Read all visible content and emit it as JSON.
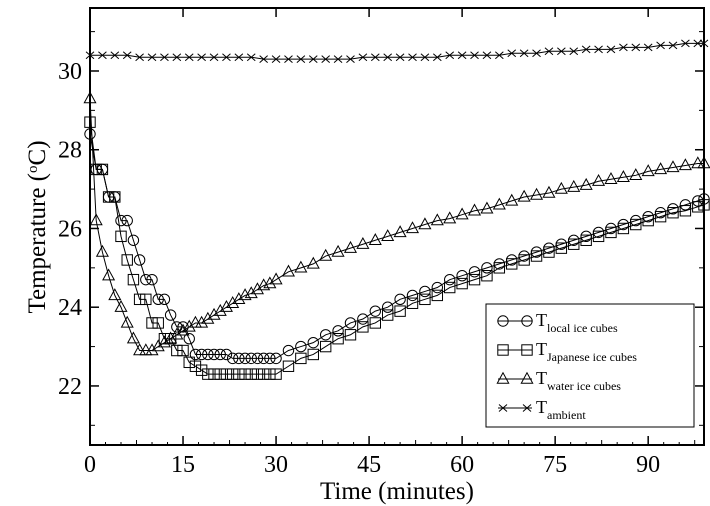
{
  "chart_data": {
    "type": "line",
    "xlabel": "Time (minutes)",
    "ylabel_parts": {
      "main": "Temperature (",
      "sup": "o",
      "rest": "C)"
    },
    "xlim": [
      0,
      99
    ],
    "ylim": [
      20.5,
      31.6
    ],
    "x_ticks": [
      0,
      15,
      30,
      45,
      60,
      75,
      90
    ],
    "y_ticks": [
      22,
      24,
      26,
      28,
      30
    ],
    "legend_position": "bottom-right",
    "series": [
      {
        "name_main": "T",
        "name_sub": "local ice cubes",
        "marker": "circle",
        "x": [
          0,
          1,
          2,
          3,
          4,
          5,
          6,
          7,
          8,
          9,
          10,
          11,
          12,
          13,
          14,
          15,
          16,
          17,
          18,
          19,
          20,
          21,
          22,
          23,
          24,
          25,
          26,
          27,
          28,
          29,
          30,
          32,
          34,
          36,
          38,
          40,
          42,
          44,
          46,
          48,
          50,
          52,
          54,
          56,
          58,
          60,
          62,
          64,
          66,
          68,
          70,
          72,
          74,
          76,
          78,
          80,
          82,
          84,
          86,
          88,
          90,
          92,
          94,
          96,
          98,
          99
        ],
        "y": [
          28.4,
          27.5,
          27.5,
          26.8,
          26.8,
          26.2,
          26.2,
          25.7,
          25.2,
          24.7,
          24.7,
          24.2,
          24.2,
          23.8,
          23.5,
          23.5,
          23.2,
          22.8,
          22.8,
          22.8,
          22.8,
          22.8,
          22.8,
          22.7,
          22.7,
          22.7,
          22.7,
          22.7,
          22.7,
          22.7,
          22.7,
          22.9,
          23.0,
          23.1,
          23.3,
          23.4,
          23.6,
          23.7,
          23.9,
          24.0,
          24.2,
          24.3,
          24.4,
          24.5,
          24.7,
          24.8,
          24.9,
          25.0,
          25.1,
          25.2,
          25.3,
          25.4,
          25.5,
          25.6,
          25.7,
          25.8,
          25.9,
          26.0,
          26.1,
          26.2,
          26.3,
          26.4,
          26.5,
          26.6,
          26.7,
          26.75
        ]
      },
      {
        "name_main": "T",
        "name_sub": "Japanese ice cubes",
        "marker": "square",
        "x": [
          0,
          1,
          2,
          3,
          4,
          5,
          6,
          7,
          8,
          9,
          10,
          11,
          12,
          13,
          14,
          15,
          16,
          17,
          18,
          19,
          20,
          21,
          22,
          23,
          24,
          25,
          26,
          27,
          28,
          29,
          30,
          32,
          34,
          36,
          38,
          40,
          42,
          44,
          46,
          48,
          50,
          52,
          54,
          56,
          58,
          60,
          62,
          64,
          66,
          68,
          70,
          72,
          74,
          76,
          78,
          80,
          82,
          84,
          86,
          88,
          90,
          92,
          94,
          96,
          98,
          99
        ],
        "y": [
          28.7,
          27.5,
          27.5,
          26.8,
          26.8,
          25.8,
          25.2,
          24.7,
          24.2,
          24.2,
          23.6,
          23.6,
          23.2,
          23.2,
          22.9,
          22.9,
          22.6,
          22.5,
          22.4,
          22.3,
          22.3,
          22.3,
          22.3,
          22.3,
          22.3,
          22.3,
          22.3,
          22.3,
          22.3,
          22.3,
          22.3,
          22.5,
          22.7,
          22.8,
          23.0,
          23.2,
          23.3,
          23.5,
          23.6,
          23.8,
          23.9,
          24.1,
          24.2,
          24.3,
          24.5,
          24.6,
          24.7,
          24.8,
          25.0,
          25.1,
          25.2,
          25.3,
          25.4,
          25.5,
          25.6,
          25.7,
          25.8,
          25.9,
          26.0,
          26.1,
          26.2,
          26.3,
          26.4,
          26.45,
          26.55,
          26.6
        ]
      },
      {
        "name_main": "T",
        "name_sub": "water ice cubes",
        "marker": "triangle",
        "x": [
          0,
          1,
          2,
          3,
          4,
          5,
          6,
          7,
          8,
          9,
          10,
          11,
          12,
          13,
          14,
          15,
          16,
          17,
          18,
          19,
          20,
          21,
          22,
          23,
          24,
          25,
          26,
          27,
          28,
          29,
          30,
          32,
          34,
          36,
          38,
          40,
          42,
          44,
          46,
          48,
          50,
          52,
          54,
          56,
          58,
          60,
          62,
          64,
          66,
          68,
          70,
          72,
          74,
          76,
          78,
          80,
          82,
          84,
          86,
          88,
          90,
          92,
          94,
          96,
          98,
          99
        ],
        "y": [
          29.3,
          26.2,
          25.4,
          24.8,
          24.3,
          24.0,
          23.6,
          23.2,
          22.9,
          22.9,
          22.9,
          23.0,
          23.1,
          23.2,
          23.3,
          23.4,
          23.5,
          23.6,
          23.6,
          23.7,
          23.8,
          23.9,
          24.0,
          24.1,
          24.2,
          24.3,
          24.35,
          24.45,
          24.55,
          24.6,
          24.7,
          24.9,
          25.0,
          25.1,
          25.3,
          25.4,
          25.5,
          25.6,
          25.7,
          25.8,
          25.9,
          26.0,
          26.1,
          26.2,
          26.25,
          26.35,
          26.45,
          26.5,
          26.6,
          26.7,
          26.8,
          26.85,
          26.9,
          27.0,
          27.05,
          27.1,
          27.2,
          27.25,
          27.3,
          27.35,
          27.45,
          27.5,
          27.55,
          27.6,
          27.65,
          27.65
        ]
      },
      {
        "name_main": "T",
        "name_sub": "ambient",
        "marker": "x",
        "x": [
          0,
          2,
          4,
          6,
          8,
          10,
          12,
          14,
          16,
          18,
          20,
          22,
          24,
          26,
          28,
          30,
          32,
          34,
          36,
          38,
          40,
          42,
          44,
          46,
          48,
          50,
          52,
          54,
          56,
          58,
          60,
          62,
          64,
          66,
          68,
          70,
          72,
          74,
          76,
          78,
          80,
          82,
          84,
          86,
          88,
          90,
          92,
          94,
          96,
          98,
          99
        ],
        "y": [
          30.4,
          30.4,
          30.4,
          30.4,
          30.35,
          30.35,
          30.35,
          30.35,
          30.35,
          30.35,
          30.35,
          30.35,
          30.35,
          30.35,
          30.3,
          30.3,
          30.3,
          30.3,
          30.3,
          30.3,
          30.3,
          30.3,
          30.35,
          30.35,
          30.35,
          30.35,
          30.35,
          30.35,
          30.35,
          30.4,
          30.4,
          30.4,
          30.4,
          30.4,
          30.45,
          30.45,
          30.45,
          30.5,
          30.5,
          30.5,
          30.55,
          30.55,
          30.55,
          30.6,
          30.6,
          30.6,
          30.65,
          30.65,
          30.7,
          30.7,
          30.7
        ]
      }
    ]
  }
}
